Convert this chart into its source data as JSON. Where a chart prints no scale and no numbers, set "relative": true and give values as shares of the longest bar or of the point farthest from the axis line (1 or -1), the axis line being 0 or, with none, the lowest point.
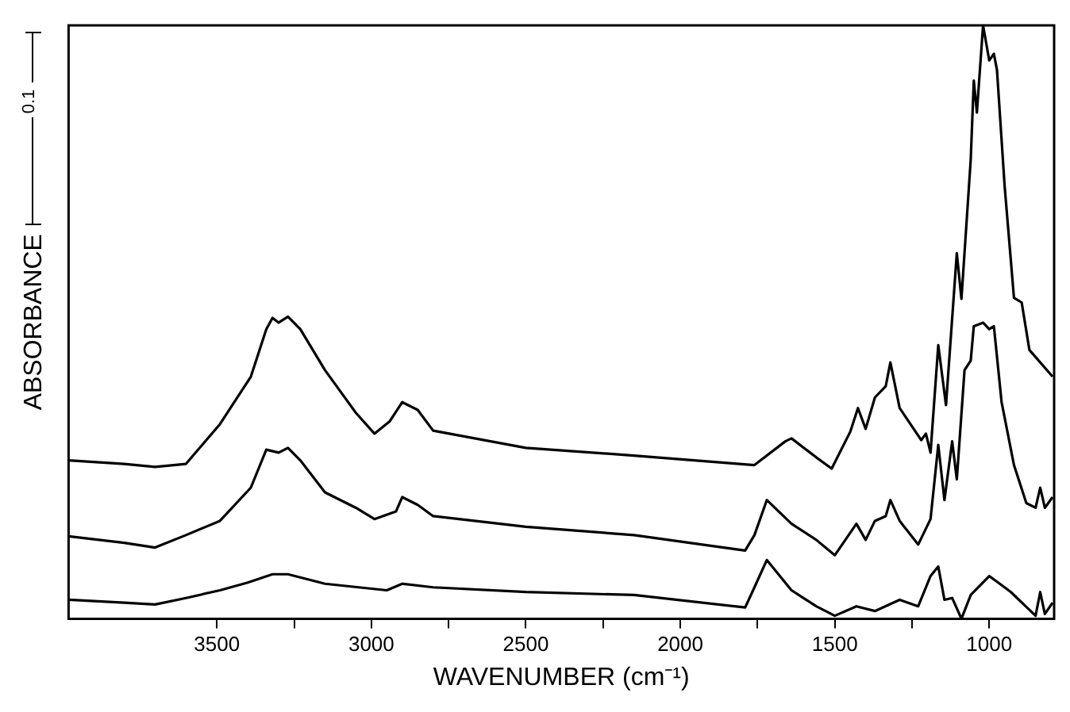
{
  "chart_data": {
    "type": "line",
    "relative": true,
    "xlabel": "WAVENUMBER (cm⁻¹)",
    "ylabel": "ABSORBANCE",
    "annotations": [
      "0.1"
    ],
    "legend": false,
    "grid": false,
    "marker": "none",
    "line_style": "solid",
    "xlim": [
      3980,
      790
    ],
    "xticks": [
      3500,
      {
        "value": 3250,
        "label": null
      },
      3000,
      {
        "value": 2750,
        "label": null
      },
      2500,
      {
        "value": 2250,
        "label": null
      },
      2000,
      {
        "value": 1750,
        "label": null
      },
      1500,
      {
        "value": 1250,
        "label": null
      },
      1000
    ],
    "series": [
      {
        "color": "#000000",
        "x": [
          3980,
          3800,
          3700,
          3600,
          3490,
          3390,
          3340,
          3320,
          3300,
          3270,
          3230,
          3150,
          3050,
          2990,
          2940,
          2900,
          2850,
          2800,
          2500,
          2150,
          1760,
          1660,
          1640,
          1560,
          1510,
          1450,
          1425,
          1400,
          1370,
          1335,
          1320,
          1290,
          1220,
          1205,
          1190,
          1165,
          1140,
          1105,
          1090,
          1060,
          1050,
          1040,
          1020,
          1000,
          985,
          975,
          950,
          920,
          895,
          870,
          795
        ],
        "values": [
          0.267,
          0.261,
          0.256,
          0.261,
          0.328,
          0.408,
          0.488,
          0.507,
          0.499,
          0.509,
          0.488,
          0.419,
          0.347,
          0.312,
          0.333,
          0.365,
          0.352,
          0.317,
          0.288,
          0.275,
          0.259,
          0.299,
          0.304,
          0.272,
          0.253,
          0.315,
          0.355,
          0.32,
          0.373,
          0.392,
          0.432,
          0.355,
          0.301,
          0.312,
          0.28,
          0.461,
          0.36,
          0.616,
          0.539,
          0.773,
          0.907,
          0.853,
          1,
          0.941,
          0.952,
          0.925,
          0.728,
          0.541,
          0.533,
          0.453,
          0.408
        ]
      },
      {
        "color": "#000000",
        "x": [
          3980,
          3800,
          3700,
          3600,
          3490,
          3390,
          3340,
          3300,
          3270,
          3230,
          3150,
          3050,
          2990,
          2920,
          2900,
          2850,
          2800,
          2500,
          2150,
          1790,
          1760,
          1720,
          1640,
          1560,
          1500,
          1430,
          1400,
          1370,
          1335,
          1320,
          1290,
          1230,
          1190,
          1165,
          1145,
          1120,
          1105,
          1080,
          1060,
          1050,
          1020,
          1000,
          985,
          960,
          920,
          880,
          850,
          835,
          820,
          795
        ],
        "values": [
          0.139,
          0.128,
          0.12,
          0.141,
          0.165,
          0.221,
          0.285,
          0.28,
          0.288,
          0.267,
          0.213,
          0.187,
          0.168,
          0.181,
          0.205,
          0.192,
          0.173,
          0.155,
          0.141,
          0.115,
          0.141,
          0.2,
          0.16,
          0.133,
          0.107,
          0.16,
          0.133,
          0.165,
          0.173,
          0.2,
          0.165,
          0.125,
          0.168,
          0.293,
          0.2,
          0.299,
          0.235,
          0.419,
          0.435,
          0.493,
          0.499,
          0.488,
          0.493,
          0.365,
          0.259,
          0.195,
          0.187,
          0.221,
          0.187,
          0.205
        ]
      },
      {
        "color": "#000000",
        "x": [
          3980,
          3800,
          3700,
          3600,
          3490,
          3400,
          3320,
          3270,
          3150,
          2950,
          2900,
          2800,
          2500,
          2150,
          1790,
          1760,
          1720,
          1640,
          1560,
          1500,
          1430,
          1370,
          1290,
          1230,
          1190,
          1165,
          1145,
          1120,
          1090,
          1060,
          1000,
          930,
          850,
          835,
          820,
          795
        ],
        "values": [
          0.032,
          0.027,
          0.024,
          0.035,
          0.048,
          0.061,
          0.075,
          0.075,
          0.059,
          0.048,
          0.059,
          0.053,
          0.045,
          0.04,
          0.019,
          0.053,
          0.099,
          0.048,
          0.021,
          0.005,
          0.021,
          0.013,
          0.032,
          0.021,
          0.072,
          0.088,
          0.032,
          0.035,
          0,
          0.04,
          0.072,
          0.045,
          0.005,
          0.045,
          0.008,
          0.027
        ]
      }
    ]
  }
}
